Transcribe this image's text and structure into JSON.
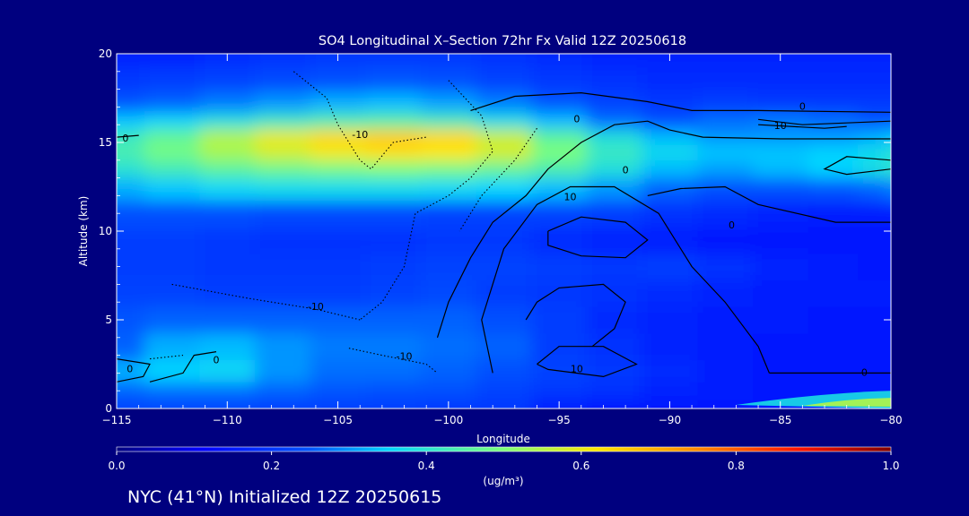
{
  "chart_data": {
    "type": "heatmap",
    "title": "SO4 Longitudinal X–Section 72hr  Fx Valid 12Z 20250618",
    "xlabel": "Longitude",
    "ylabel": "Altitude (km)",
    "xlim": [
      -115,
      -80
    ],
    "ylim": [
      0,
      20
    ],
    "x_ticks": [
      -115,
      -110,
      -105,
      -100,
      -95,
      -90,
      -85,
      -80
    ],
    "x_tick_labels": [
      "−115",
      "−110",
      "−105",
      "−100",
      "−95",
      "−90",
      "−85",
      "−80"
    ],
    "y_ticks": [
      0,
      5,
      10,
      15,
      20
    ],
    "y_tick_labels": [
      "0",
      "5",
      "10",
      "15",
      "20"
    ],
    "colorbar": {
      "range": [
        0,
        1
      ],
      "ticks": [
        0,
        0.2,
        0.4,
        0.6,
        0.8,
        1.0
      ],
      "tick_labels": [
        "0.0",
        "0.2",
        "0.4",
        "0.6",
        "0.8",
        "1.0"
      ],
      "unit_label": "(ug/m³)"
    },
    "field_rows": [
      {
        "alt": 0.0,
        "values": [
          0.22,
          0.22,
          0.22,
          0.21,
          0.21,
          0.21,
          0.2,
          0.2,
          0.16,
          0.15,
          0.15,
          0.15,
          0.15,
          0.14,
          0.14,
          0.14
        ]
      },
      {
        "alt": 1.0,
        "values": [
          0.26,
          0.27,
          0.27,
          0.26,
          0.25,
          0.24,
          0.24,
          0.22,
          0.2,
          0.19,
          0.17,
          0.16,
          0.15,
          0.15,
          0.15,
          0.15
        ]
      },
      {
        "alt": 2.0,
        "values": [
          0.32,
          0.35,
          0.36,
          0.3,
          0.27,
          0.27,
          0.26,
          0.24,
          0.22,
          0.2,
          0.18,
          0.16,
          0.15,
          0.15,
          0.15,
          0.15
        ]
      },
      {
        "alt": 3.5,
        "values": [
          0.26,
          0.32,
          0.33,
          0.3,
          0.28,
          0.28,
          0.27,
          0.26,
          0.21,
          0.19,
          0.17,
          0.16,
          0.15,
          0.15,
          0.15,
          0.15
        ]
      },
      {
        "alt": 5.0,
        "values": [
          0.25,
          0.26,
          0.26,
          0.26,
          0.26,
          0.26,
          0.26,
          0.24,
          0.21,
          0.18,
          0.17,
          0.16,
          0.16,
          0.15,
          0.15,
          0.15
        ]
      },
      {
        "alt": 6.5,
        "values": [
          0.22,
          0.22,
          0.21,
          0.21,
          0.21,
          0.22,
          0.23,
          0.21,
          0.2,
          0.19,
          0.18,
          0.17,
          0.16,
          0.16,
          0.16,
          0.16
        ]
      },
      {
        "alt": 8.0,
        "values": [
          0.21,
          0.21,
          0.2,
          0.2,
          0.2,
          0.21,
          0.22,
          0.22,
          0.21,
          0.2,
          0.21,
          0.19,
          0.17,
          0.16,
          0.15,
          0.15
        ]
      },
      {
        "alt": 9.5,
        "values": [
          0.21,
          0.21,
          0.2,
          0.19,
          0.19,
          0.19,
          0.2,
          0.2,
          0.18,
          0.17,
          0.16,
          0.15,
          0.15,
          0.14,
          0.14,
          0.14
        ]
      },
      {
        "alt": 11.0,
        "values": [
          0.24,
          0.24,
          0.24,
          0.23,
          0.23,
          0.23,
          0.22,
          0.22,
          0.22,
          0.21,
          0.19,
          0.18,
          0.17,
          0.16,
          0.16,
          0.16
        ]
      },
      {
        "alt": 12.5,
        "values": [
          0.32,
          0.34,
          0.36,
          0.37,
          0.37,
          0.37,
          0.36,
          0.35,
          0.33,
          0.3,
          0.26,
          0.24,
          0.24,
          0.25,
          0.26,
          0.28
        ]
      },
      {
        "alt": 13.5,
        "values": [
          0.4,
          0.43,
          0.46,
          0.48,
          0.49,
          0.5,
          0.49,
          0.47,
          0.44,
          0.39,
          0.33,
          0.31,
          0.33,
          0.35,
          0.38,
          0.41
        ]
      },
      {
        "alt": 14.5,
        "values": [
          0.44,
          0.49,
          0.54,
          0.58,
          0.61,
          0.63,
          0.62,
          0.58,
          0.5,
          0.42,
          0.37,
          0.34,
          0.34,
          0.35,
          0.37,
          0.4
        ]
      },
      {
        "alt": 15.3,
        "values": [
          0.42,
          0.47,
          0.55,
          0.6,
          0.64,
          0.66,
          0.64,
          0.57,
          0.46,
          0.39,
          0.33,
          0.3,
          0.3,
          0.3,
          0.32,
          0.34
        ]
      },
      {
        "alt": 16.2,
        "values": [
          0.34,
          0.36,
          0.39,
          0.42,
          0.44,
          0.45,
          0.43,
          0.38,
          0.33,
          0.27,
          0.24,
          0.27,
          0.28,
          0.27,
          0.25,
          0.25
        ]
      },
      {
        "alt": 17.2,
        "values": [
          0.25,
          0.26,
          0.28,
          0.3,
          0.32,
          0.33,
          0.31,
          0.28,
          0.25,
          0.22,
          0.2,
          0.21,
          0.2,
          0.2,
          0.2,
          0.2
        ]
      },
      {
        "alt": 18.5,
        "values": [
          0.2,
          0.21,
          0.22,
          0.23,
          0.24,
          0.25,
          0.24,
          0.22,
          0.2,
          0.19,
          0.18,
          0.18,
          0.18,
          0.18,
          0.18,
          0.18
        ]
      },
      {
        "alt": 20.0,
        "values": [
          0.17,
          0.17,
          0.18,
          0.19,
          0.2,
          0.2,
          0.2,
          0.19,
          0.18,
          0.17,
          0.17,
          0.17,
          0.17,
          0.17,
          0.17,
          0.17
        ]
      }
    ],
    "field_lons": [
      -115,
      -112.5,
      -110,
      -107.5,
      -105,
      -102.5,
      -100,
      -97.5,
      -95,
      -92.5,
      -90,
      -87.5,
      -85,
      -82.5,
      -80.5,
      -80
    ],
    "surface_streak": {
      "lon_range": [
        -87,
        -80
      ],
      "alt_range": [
        0,
        0.8
      ],
      "peak_value": 0.55
    },
    "contours": [
      {
        "style": "solid",
        "label": "0",
        "label_at": [
          -92,
          13.4
        ],
        "points": [
          [
            -100.5,
            4.0
          ],
          [
            -100.0,
            6.0
          ],
          [
            -99.0,
            8.5
          ],
          [
            -98.0,
            10.5
          ],
          [
            -96.5,
            12.0
          ],
          [
            -95.5,
            13.5
          ],
          [
            -94.0,
            15.0
          ],
          [
            -92.5,
            16.0
          ],
          [
            -91.0,
            16.2
          ],
          [
            -90.0,
            15.7
          ],
          [
            -88.5,
            15.3
          ],
          [
            -85.0,
            15.2
          ],
          [
            -80.0,
            15.2
          ]
        ]
      },
      {
        "style": "solid",
        "label": "0",
        "label_at": [
          -94.2,
          16.3
        ],
        "points": [
          [
            -99.0,
            16.8
          ],
          [
            -97.0,
            17.6
          ],
          [
            -94.0,
            17.8
          ],
          [
            -91.0,
            17.3
          ],
          [
            -89.0,
            16.8
          ],
          [
            -86.0,
            16.8
          ],
          [
            -80.0,
            16.7
          ]
        ]
      },
      {
        "style": "solid",
        "label": "0",
        "label_at": [
          -84,
          17.0
        ],
        "points": [
          [
            -86.0,
            16.3
          ],
          [
            -84.0,
            16.0
          ],
          [
            -82.0,
            16.1
          ],
          [
            -80.0,
            16.2
          ]
        ]
      },
      {
        "style": "solid",
        "label": "10",
        "label_at": [
          -85,
          15.9
        ],
        "points": [
          [
            -86.0,
            16.0
          ],
          [
            -83.0,
            15.8
          ],
          [
            -82.0,
            15.9
          ]
        ]
      },
      {
        "style": "solid",
        "label": "10",
        "label_at": [
          -94.5,
          11.9
        ],
        "points": [
          [
            -98.0,
            2.0
          ],
          [
            -98.5,
            5.0
          ],
          [
            -97.5,
            9.0
          ],
          [
            -96.0,
            11.5
          ],
          [
            -94.5,
            12.5
          ],
          [
            -92.5,
            12.5
          ],
          [
            -90.5,
            11.0
          ],
          [
            -89.0,
            8.0
          ],
          [
            -87.5,
            6.0
          ],
          [
            -86.0,
            3.5
          ],
          [
            -85.5,
            2.0
          ]
        ]
      },
      {
        "style": "solid",
        "label": "10",
        "label_at": [
          -94.2,
          2.2
        ],
        "points": [
          [
            -96.0,
            2.5
          ],
          [
            -95.0,
            3.5
          ],
          [
            -93.0,
            3.5
          ],
          [
            -91.5,
            2.5
          ],
          [
            -93.0,
            1.8
          ],
          [
            -95.5,
            2.2
          ],
          [
            -96.0,
            2.5
          ]
        ]
      },
      {
        "style": "solid",
        "label": "",
        "label_at": [
          0,
          0
        ],
        "points": [
          [
            -96.5,
            5.0
          ],
          [
            -96.0,
            6.0
          ],
          [
            -95.0,
            6.8
          ],
          [
            -93.0,
            7.0
          ],
          [
            -92.0,
            6.0
          ],
          [
            -92.5,
            4.5
          ],
          [
            -93.5,
            3.5
          ]
        ]
      },
      {
        "style": "solid",
        "label": "",
        "label_at": [
          0,
          0
        ],
        "points": [
          [
            -95.5,
            10.0
          ],
          [
            -94.0,
            10.8
          ],
          [
            -92.0,
            10.5
          ],
          [
            -91.0,
            9.5
          ],
          [
            -92.0,
            8.5
          ],
          [
            -94.0,
            8.6
          ],
          [
            -95.5,
            9.2
          ],
          [
            -95.5,
            10.0
          ]
        ]
      },
      {
        "style": "solid",
        "label": "0",
        "label_at": [
          -87.2,
          10.3
        ],
        "points": [
          [
            -91.0,
            12.0
          ],
          [
            -89.5,
            12.4
          ],
          [
            -87.5,
            12.5
          ],
          [
            -86.0,
            11.5
          ],
          [
            -82.5,
            10.5
          ],
          [
            -80.0,
            10.5
          ]
        ]
      },
      {
        "style": "solid",
        "label": "",
        "label_at": [
          0,
          0
        ],
        "points": [
          [
            -80.0,
            14.0
          ],
          [
            -82.0,
            14.2
          ],
          [
            -83.0,
            13.5
          ],
          [
            -82.0,
            13.2
          ],
          [
            -80.0,
            13.5
          ]
        ]
      },
      {
        "style": "solid",
        "label": "0",
        "label_at": [
          -81.2,
          2.0
        ],
        "points": [
          [
            -85.5,
            2.0
          ],
          [
            -83.5,
            2.0
          ],
          [
            -81.0,
            2.0
          ],
          [
            -80.0,
            2.0
          ]
        ]
      },
      {
        "style": "solid",
        "label": "0",
        "label_at": [
          -114.4,
          2.2
        ],
        "points": [
          [
            -115.0,
            2.8
          ],
          [
            -113.5,
            2.5
          ],
          [
            -113.8,
            1.8
          ],
          [
            -115.0,
            1.5
          ]
        ]
      },
      {
        "style": "solid",
        "label": "0",
        "label_at": [
          -110.5,
          2.7
        ],
        "points": [
          [
            -110.5,
            3.2
          ],
          [
            -111.5,
            3.0
          ],
          [
            -112.0,
            2.0
          ],
          [
            -113.5,
            1.5
          ]
        ]
      },
      {
        "style": "solid",
        "label": "0",
        "label_at": [
          -114.6,
          15.2
        ],
        "points": [
          [
            -115.0,
            15.3
          ],
          [
            -114.0,
            15.4
          ]
        ]
      },
      {
        "style": "dotted",
        "label": "-10",
        "label_at": [
          -104.0,
          15.4
        ],
        "points": [
          [
            -107.0,
            19.0
          ],
          [
            -105.5,
            17.5
          ],
          [
            -105.0,
            16.0
          ],
          [
            -104.0,
            14.0
          ],
          [
            -103.5,
            13.5
          ],
          [
            -102.5,
            15.0
          ],
          [
            -101.0,
            15.3
          ]
        ]
      },
      {
        "style": "dotted",
        "label": "",
        "label_at": [
          0,
          0
        ],
        "points": [
          [
            -100.0,
            18.5
          ],
          [
            -98.5,
            16.5
          ],
          [
            -98.0,
            14.5
          ],
          [
            -99.0,
            13.0
          ],
          [
            -100.0,
            12.0
          ],
          [
            -101.5,
            11.0
          ],
          [
            -102.0,
            8.0
          ],
          [
            -103.0,
            6.0
          ],
          [
            -104.0,
            5.0
          ]
        ]
      },
      {
        "style": "dotted",
        "label": "",
        "label_at": [
          0,
          0
        ],
        "points": [
          [
            -96.0,
            15.8
          ],
          [
            -97.0,
            14.0
          ],
          [
            -98.5,
            12.0
          ],
          [
            -99.5,
            10.0
          ]
        ]
      },
      {
        "style": "dotted",
        "label": "-10",
        "label_at": [
          -106.0,
          5.7
        ],
        "points": [
          [
            -112.5,
            7.0
          ],
          [
            -109.0,
            6.2
          ],
          [
            -106.0,
            5.6
          ],
          [
            -104.0,
            5.0
          ]
        ]
      },
      {
        "style": "dotted",
        "label": "-10",
        "label_at": [
          -102.0,
          2.9
        ],
        "points": [
          [
            -104.5,
            3.4
          ],
          [
            -103.0,
            3.0
          ],
          [
            -101.0,
            2.5
          ],
          [
            -100.5,
            2.0
          ]
        ]
      },
      {
        "style": "dotted",
        "label": "",
        "label_at": [
          0,
          0
        ],
        "points": [
          [
            -113.5,
            2.8
          ],
          [
            -112.0,
            3.0
          ]
        ]
      }
    ],
    "footer": "NYC (41°N) Initialized 12Z 20250615",
    "grid": false,
    "legend": "none"
  }
}
